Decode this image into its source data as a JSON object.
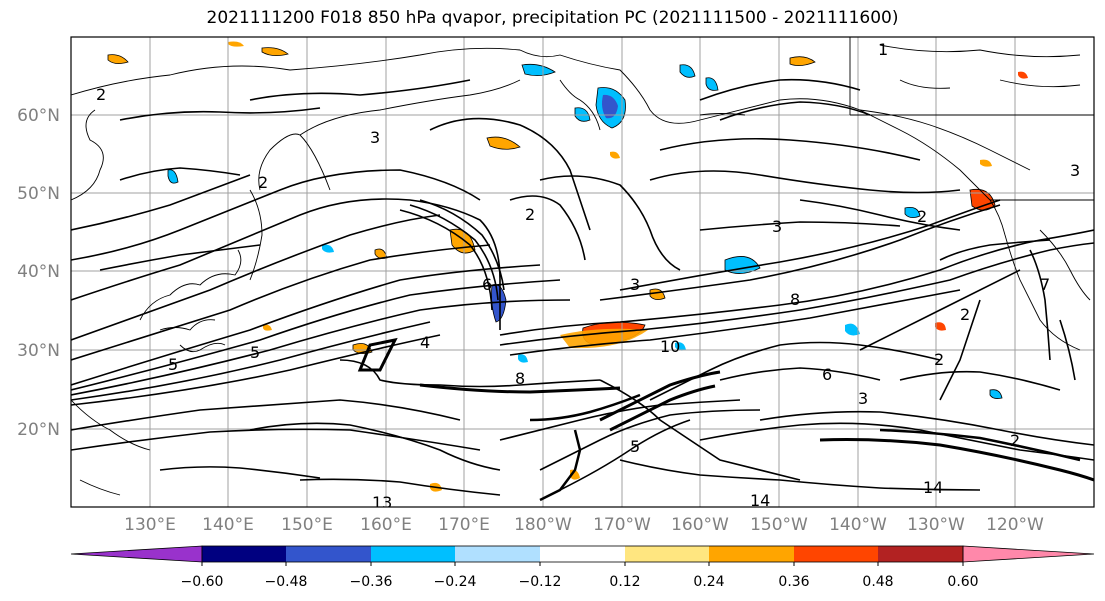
{
  "title": "2021111200 F018 850 hPa qvapor, precipitation PC (2021111500 - 2021111600)",
  "map": {
    "lat_labels": [
      "60°N",
      "50°N",
      "40°N",
      "30°N",
      "20°N"
    ],
    "lon_labels": [
      "130°E",
      "140°E",
      "150°E",
      "160°E",
      "170°E",
      "180°W",
      "170°W",
      "160°W",
      "150°W",
      "140°W",
      "130°W",
      "120°W"
    ],
    "tick_label_color": "#808080",
    "contour_labels": [
      "1",
      "2",
      "3",
      "2",
      "3",
      "2",
      "5",
      "3",
      "6",
      "10",
      "8",
      "13",
      "14",
      "14",
      "2",
      "3",
      "8",
      "5",
      "5",
      "7",
      "6",
      "2",
      "2",
      "3",
      "2",
      "4"
    ]
  },
  "colorbar": {
    "tick_labels": [
      "−0.60",
      "−0.48",
      "−0.36",
      "−0.24",
      "−0.12",
      "0.12",
      "0.24",
      "0.36",
      "0.48",
      "0.60"
    ],
    "colors": [
      "#9932cc",
      "#000080",
      "#3355cc",
      "#00bfff",
      "#b0e0ff",
      "#ffffff",
      "#ffe680",
      "#ffa500",
      "#ff4500",
      "#b22222",
      "#ff88aa"
    ]
  }
}
